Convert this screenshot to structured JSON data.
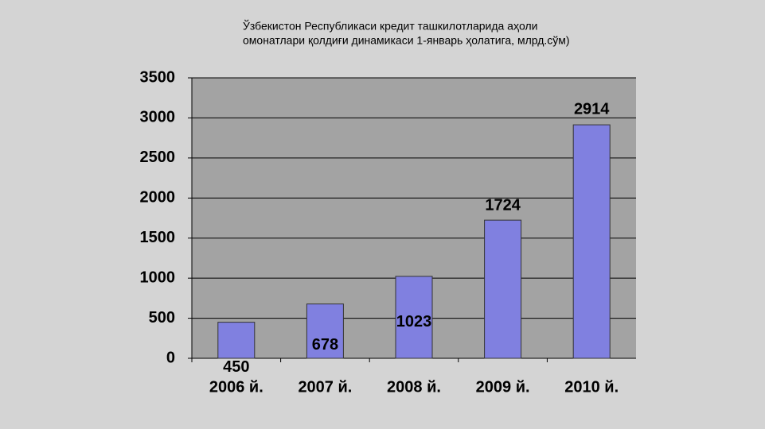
{
  "chart_data": {
    "type": "bar",
    "title": [
      "Ўзбекистон Республикаси  кредит ташкилотларида аҳоли",
      "омонатлари қолдиғи динамикаси 1-январь ҳолатига, млрд.сўм)"
    ],
    "categories": [
      "2006 й.",
      "2007 й.",
      "2008 й.",
      "2009 й.",
      "2010 й."
    ],
    "values": [
      450,
      678,
      1023,
      1724,
      2914
    ],
    "color": "#8080e0",
    "ylim": [
      0,
      3500
    ],
    "yticks": [
      0,
      500,
      1000,
      1500,
      2000,
      2500,
      3000,
      3500
    ],
    "grid": true
  }
}
